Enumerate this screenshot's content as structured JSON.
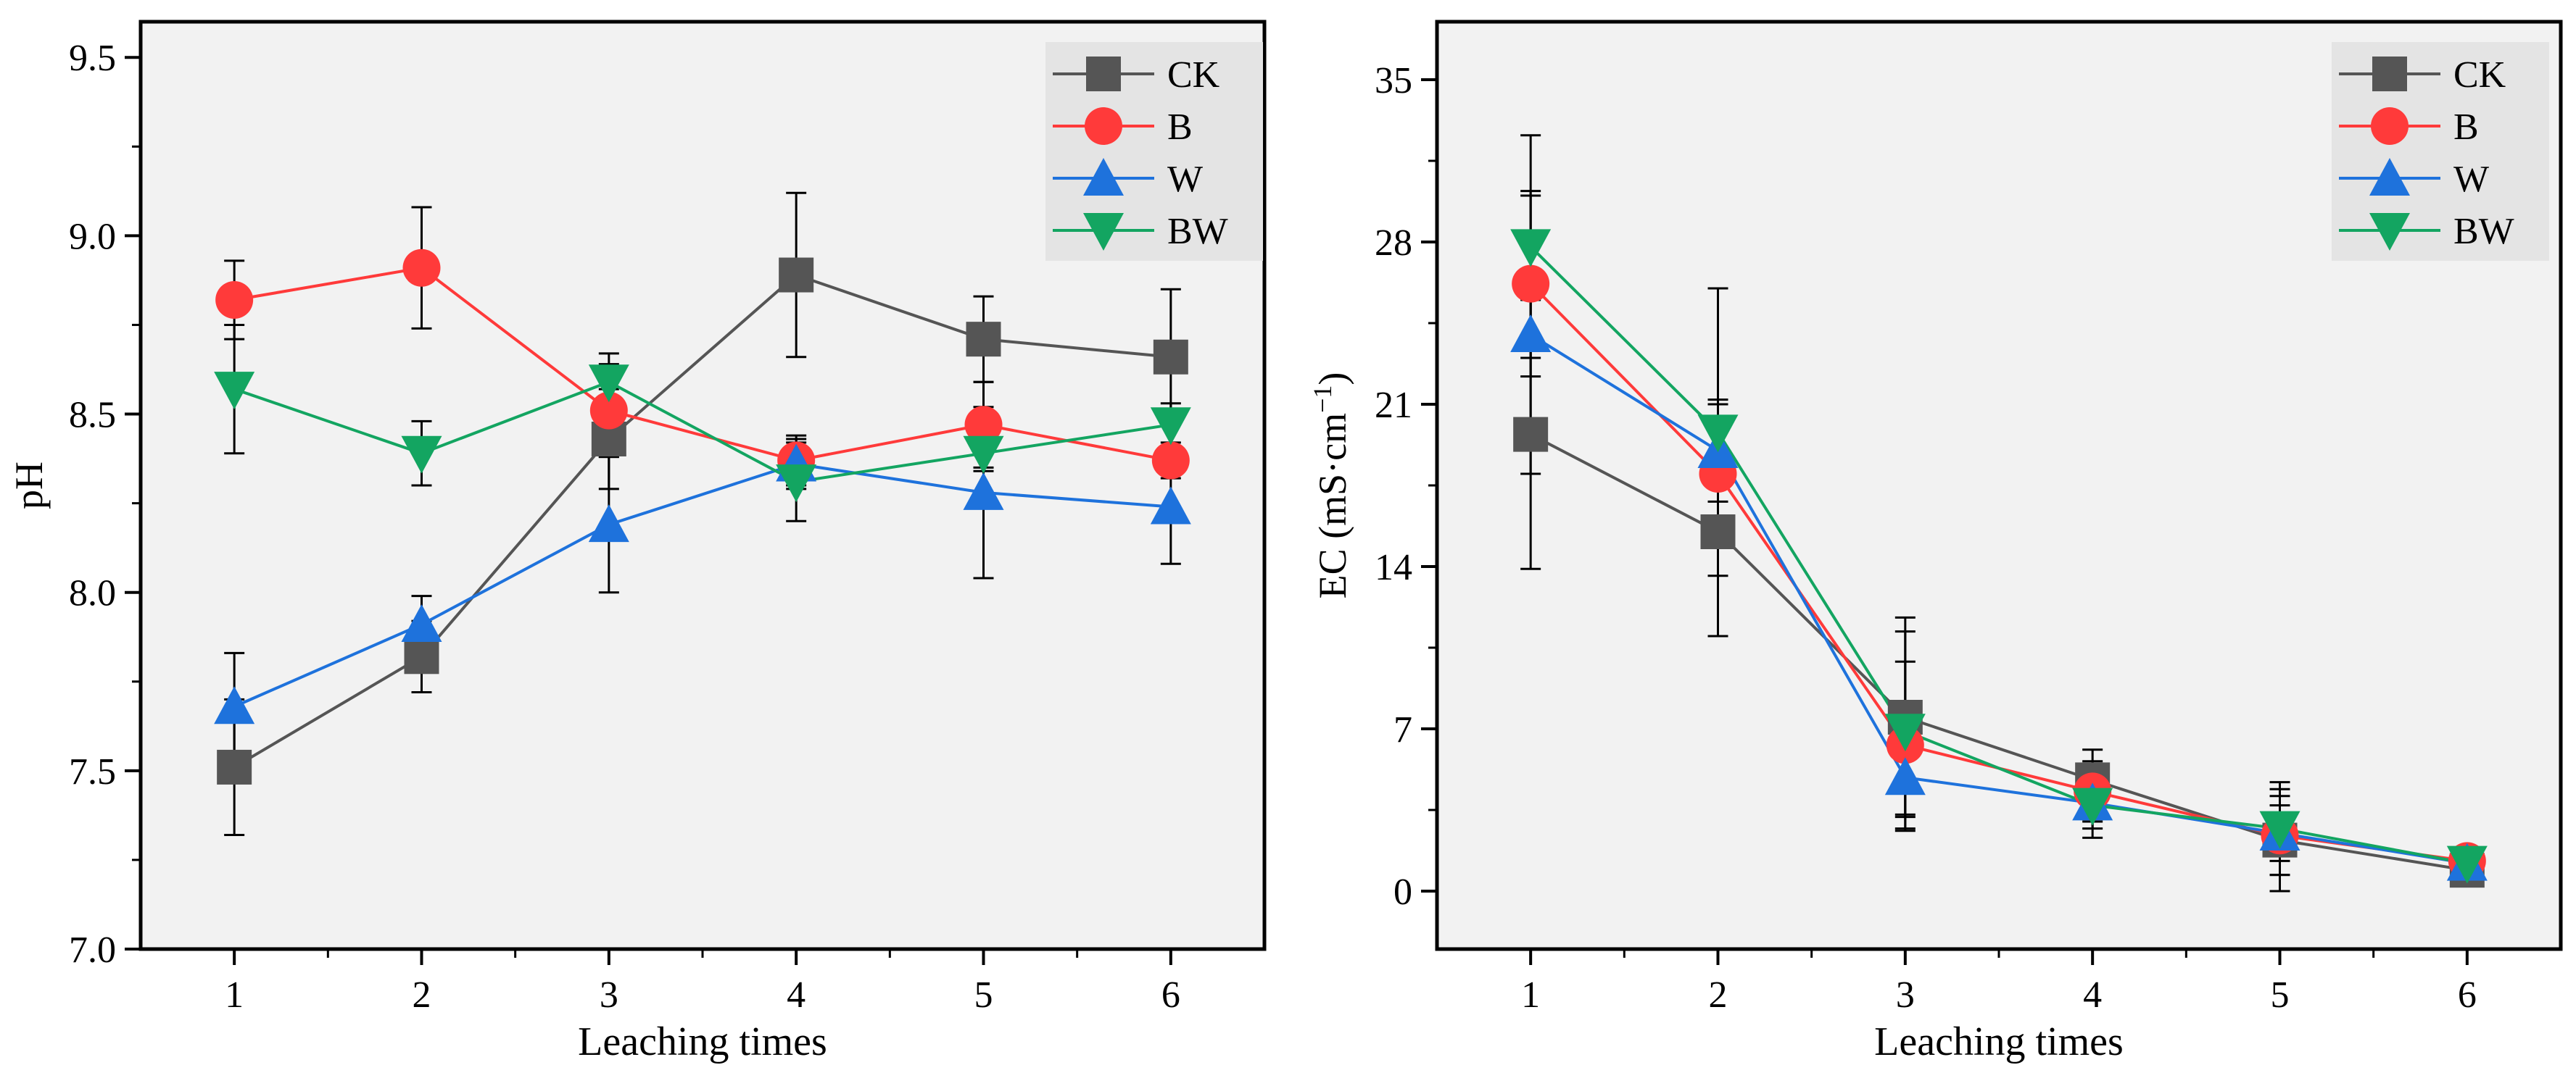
{
  "chart_data": [
    {
      "id": "ph",
      "type": "line",
      "ylabel": "pH",
      "xlabel": "Leaching times",
      "xlim": [
        0.5,
        6.5
      ],
      "ylim": [
        7.0,
        9.6
      ],
      "x": [
        1,
        2,
        3,
        4,
        5,
        6
      ],
      "xticks": [
        "1",
        "2",
        "3",
        "4",
        "5",
        "6"
      ],
      "yticks": [
        7.0,
        7.5,
        8.0,
        8.5,
        9.0,
        9.5
      ],
      "ytick_labels": [
        "7.0",
        "7.5",
        "8.0",
        "8.5",
        "9.0",
        "9.5"
      ],
      "yminor_step": 0.25,
      "series": [
        {
          "name": "CK",
          "color": "#555555",
          "marker": "square",
          "values": [
            7.51,
            7.82,
            8.43,
            8.89,
            8.71,
            8.66
          ],
          "errors": [
            0.19,
            0.1,
            0.14,
            0.23,
            0.12,
            0.19
          ]
        },
        {
          "name": "B",
          "color": "#ff3a3a",
          "marker": "circle",
          "values": [
            8.82,
            8.91,
            8.51,
            8.37,
            8.47,
            8.37
          ],
          "errors": [
            0.11,
            0.17,
            0.13,
            0.07,
            0.12,
            0.05
          ]
        },
        {
          "name": "W",
          "color": "#1e72dc",
          "marker": "triangle-up",
          "values": [
            7.68,
            7.91,
            8.19,
            8.36,
            8.28,
            8.24
          ],
          "errors": [
            0.15,
            0.08,
            0.19,
            0.07,
            0.24,
            0.16
          ]
        },
        {
          "name": "BW",
          "color": "#13a561",
          "marker": "triangle-down",
          "values": [
            8.57,
            8.39,
            8.59,
            8.31,
            8.39,
            8.47
          ],
          "errors": [
            0.18,
            0.09,
            0.08,
            0.11,
            0.05,
            0.06
          ]
        }
      ],
      "legend": "top-right"
    },
    {
      "id": "ec",
      "type": "line",
      "ylabel_prefix": "EC (mS·cm",
      "ylabel_sup": "−1",
      "ylabel_suffix": ")",
      "xlabel": "Leaching times",
      "xlim": [
        0.5,
        6.5
      ],
      "ylim": [
        -2.5,
        37.5
      ],
      "x": [
        1,
        2,
        3,
        4,
        5,
        6
      ],
      "xticks": [
        "1",
        "2",
        "3",
        "4",
        "5",
        "6"
      ],
      "yticks": [
        0,
        7,
        14,
        21,
        28,
        35
      ],
      "ytick_labels": [
        "0",
        "7",
        "14",
        "21",
        "28",
        "35"
      ],
      "yminor_step": 3.5,
      "series": [
        {
          "name": "CK",
          "color": "#555555",
          "marker": "square",
          "values": [
            19.7,
            15.5,
            7.5,
            4.8,
            2.2,
            0.9
          ],
          "errors": [
            5.8,
            4.5,
            4.3,
            1.3,
            2.2,
            0.5
          ]
        },
        {
          "name": "B",
          "color": "#ff3a3a",
          "marker": "circle",
          "values": [
            26.2,
            18.0,
            6.3,
            4.3,
            2.4,
            1.3
          ],
          "errors": [
            4.0,
            3.0,
            3.6,
            1.3,
            1.7,
            0.5
          ]
        },
        {
          "name": "W",
          "color": "#1e72dc",
          "marker": "triangle-up",
          "values": [
            24.0,
            19.0,
            4.9,
            3.8,
            2.5,
            1.2
          ],
          "errors": [
            6.0,
            2.2,
            1.6,
            1.1,
            1.2,
            0.6
          ]
        },
        {
          "name": "BW",
          "color": "#13a561",
          "marker": "triangle-down",
          "values": [
            27.8,
            19.8,
            6.9,
            3.7,
            2.7,
            1.2
          ],
          "errors": [
            4.8,
            6.2,
            4.3,
            1.4,
            2.0,
            0.6
          ]
        }
      ],
      "legend": "top-right"
    }
  ]
}
